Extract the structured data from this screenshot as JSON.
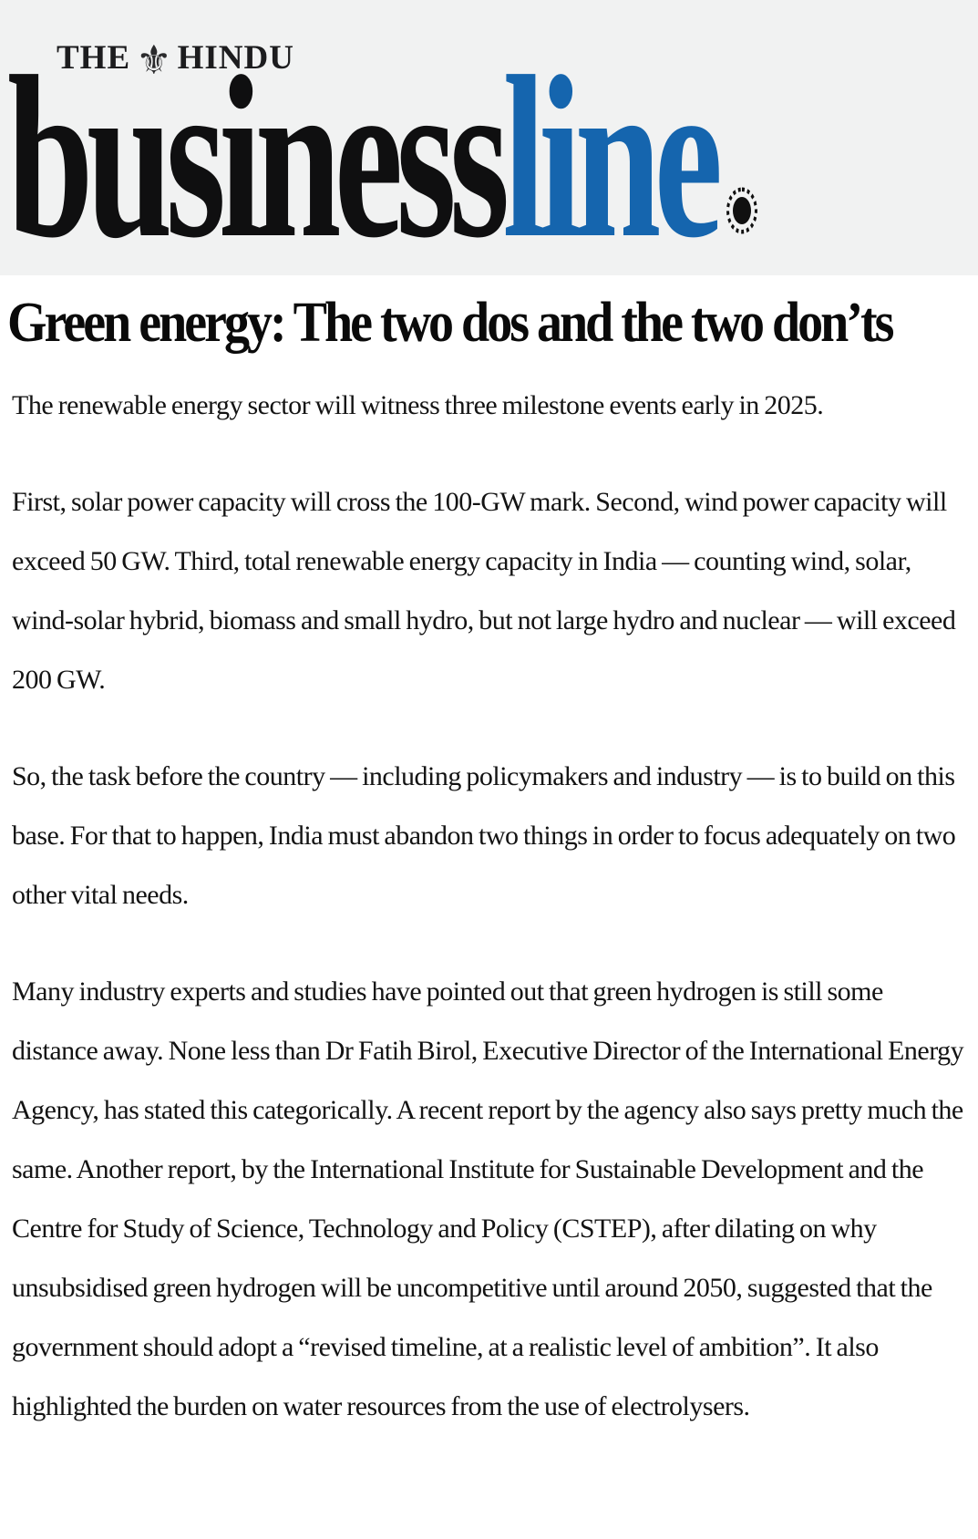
{
  "masthead": {
    "brand_small_pre": "THE",
    "brand_small_post": "HINDU",
    "brand_black": "business",
    "brand_blue": "line",
    "colors": {
      "band_bg": "#f1f2f2",
      "brand_blue": "#1565ae",
      "brand_black": "#0f0f10"
    }
  },
  "icons": {
    "hindu_crest": "⚜",
    "registered_dot": "black dot inside dotted ring"
  },
  "article": {
    "headline": "Green energy: The two dos and the two don’ts",
    "paragraphs": [
      "The renewable energy sector will witness three milestone events early in 2025.",
      "First, solar power capacity will cross the 100-GW mark. Second, wind power capacity will exceed 50 GW. Third, total renewable energy capacity in India — counting wind, solar, wind-solar hybrid, biomass and small hydro, but not large hydro and nuclear — will exceed 200 GW.",
      "So, the task before the country — including policymakers and industry — is to build on this base. For that to happen, India must abandon two things in order to focus adequately on two other vital needs.",
      "Many industry experts and studies have pointed out that green hydrogen is still some distance away. None less than Dr Fatih Birol, Executive Director of the International Energy Agency, has stated this categorically. A recent report by the agency also says pretty much the same. Another report, by the International Institute for Sustainable Development and the Centre for Study of Science, Technology and Policy (CSTEP), after dilating on why unsubsidised green hydrogen will be uncompetitive until around 2050, suggested that the government should adopt a “revised timeline, at a realistic level of ambition”. It also highlighted the burden on water resources from the use of electrolysers."
    ]
  }
}
